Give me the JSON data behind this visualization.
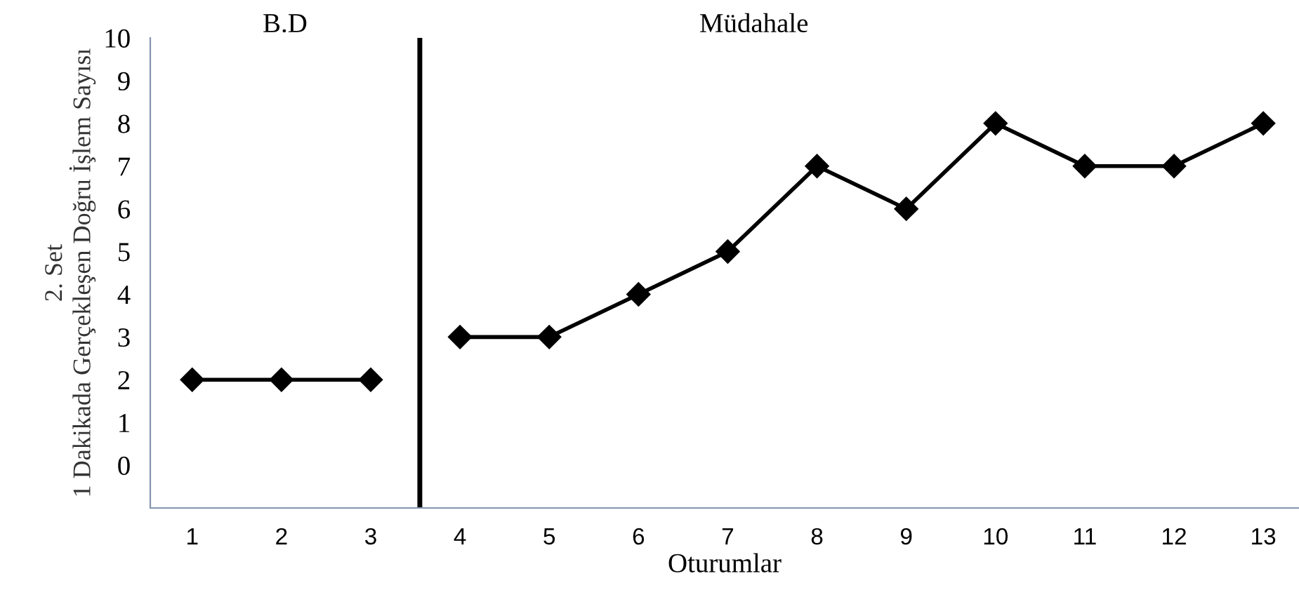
{
  "chart_data": {
    "type": "line",
    "xlabel": "Oturumlar",
    "ylabel": "2. Set\n1 Dakikada Gerçekleşen Doğru İşlem Sayısı",
    "annotations": [
      "B.D",
      "Müdahale"
    ],
    "series": [
      {
        "color": "#000000",
        "x": [
          1,
          2,
          3
        ],
        "values": [
          2,
          2,
          2
        ]
      },
      {
        "color": "#000000",
        "x": [
          4,
          5,
          6,
          7,
          8,
          9,
          10,
          11,
          12,
          13
        ],
        "values": [
          3,
          3,
          4,
          5,
          7,
          6,
          8,
          7,
          7,
          8
        ]
      }
    ],
    "xlim": [
      0.53,
      13.4
    ],
    "xticks": [
      1,
      2,
      3,
      4,
      5,
      6,
      7,
      8,
      9,
      10,
      11,
      12,
      13
    ],
    "ylim": [
      -1,
      10
    ],
    "yticks": [
      0,
      1,
      2,
      3,
      4,
      5,
      6,
      7,
      8,
      9,
      10
    ],
    "ref_lines": [
      {
        "axis": "x",
        "value": 3.55,
        "color": "#000000"
      }
    ],
    "marker": "diamond",
    "line_style": "solid",
    "grid": false,
    "legend": false
  }
}
